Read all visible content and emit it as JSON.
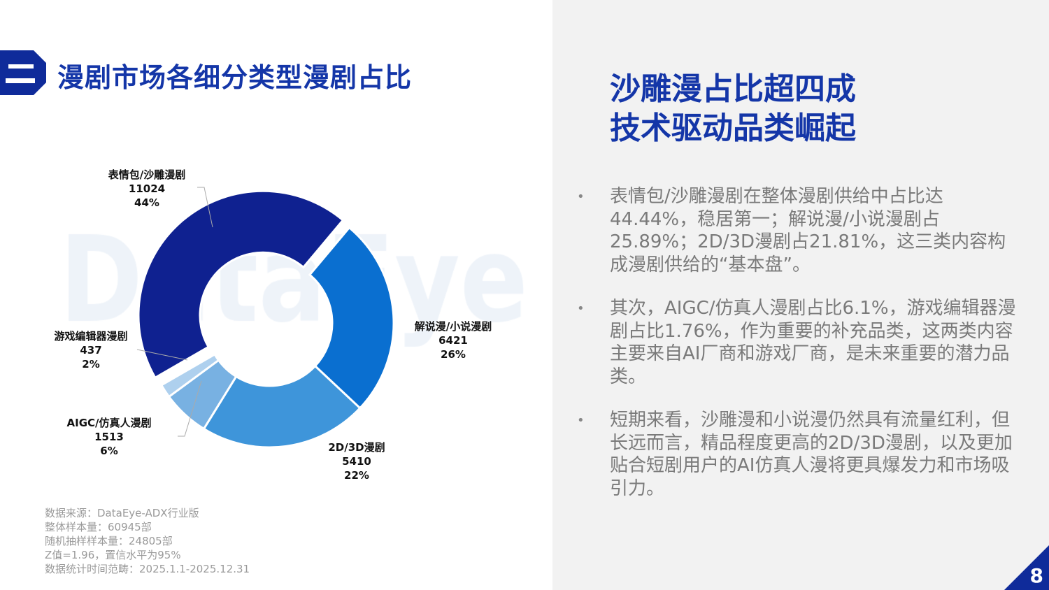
{
  "header": {
    "section_number": "二",
    "title": "漫剧市场各细分类型漫剧占比"
  },
  "headline": [
    "沙雕漫占比超四成",
    "技术驱动品类崛起"
  ],
  "bullets": [
    "表情包/沙雕漫剧在整体漫剧供给中占比达44.44%，稳居第一；解说漫/小说漫剧占25.89%；2D/3D漫剧占21.81%，这三类内容构成漫剧供给的“基本盘”。",
    "其次，AIGC/仿真人漫剧占比6.1%，游戏编辑器漫剧占比1.76%，作为重要的补充品类，这两类内容主要来自AI厂商和游戏厂商，是未来重要的潜力品类。",
    "短期来看，沙雕漫和小说漫仍然具有流量红利，但长远而言，精品程度更高的2D/3D漫剧，以及更加贴合短剧用户的AI仿真人漫将更具爆发力和市场吸引力。"
  ],
  "source": [
    "数据来源：DataEye-ADX行业版",
    "整体样本量：60945部",
    "随机抽样样本量：24805部",
    "Z值=1.96，置信水平为95%",
    "数据统计时间范畴：2025.1.1-2025.12.31"
  ],
  "watermark": "DataEye",
  "page_number": "8",
  "chart_data": {
    "type": "pie",
    "donut": true,
    "title": "",
    "slices": [
      {
        "name": "表情包/沙雕漫剧",
        "value": 11024,
        "percent": "44%",
        "color": "#0f2190"
      },
      {
        "name": "解说漫/小说漫剧",
        "value": 6421,
        "percent": "26%",
        "color": "#0a6fd0"
      },
      {
        "name": "2D/3D漫剧",
        "value": 5410,
        "percent": "22%",
        "color": "#3e95da"
      },
      {
        "name": "AIGC/仿真人漫剧",
        "value": 1513,
        "percent": "6%",
        "color": "#78b1e2"
      },
      {
        "name": "游戏编辑器漫剧",
        "value": 437,
        "percent": "2%",
        "color": "#aed0ee"
      }
    ]
  }
}
